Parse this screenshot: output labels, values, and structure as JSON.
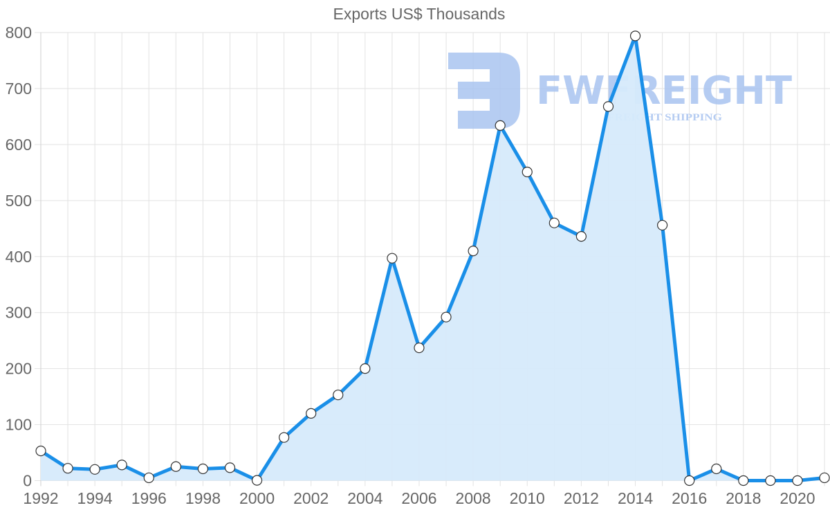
{
  "chart_data": {
    "type": "area",
    "title": "Exports US$ Thousands",
    "xlabel": "",
    "ylabel": "",
    "ylim": [
      0,
      800
    ],
    "grid": true,
    "legend": "none",
    "x": [
      1992,
      1993,
      1994,
      1995,
      1996,
      1997,
      1998,
      1999,
      2000,
      2001,
      2002,
      2003,
      2004,
      2005,
      2006,
      2007,
      2008,
      2009,
      2010,
      2011,
      2012,
      2013,
      2014,
      2015,
      2016,
      2017,
      2018,
      2019,
      2020,
      2021
    ],
    "series": [
      {
        "name": "Exports US$ Thousands",
        "values": [
          53,
          22,
          20,
          28,
          5,
          25,
          21,
          23,
          0.5,
          77,
          120,
          153,
          200,
          397,
          237,
          292,
          410,
          634,
          551,
          460,
          436,
          668,
          794,
          456,
          0,
          21,
          0,
          0,
          0,
          5
        ],
        "color": "#1a8fe8",
        "fill": "#d6eafb"
      }
    ],
    "y_ticks": [
      "0",
      "100",
      "200",
      "300",
      "400",
      "500",
      "600",
      "700",
      "800"
    ],
    "x_ticks": [
      "1992",
      "1994",
      "1996",
      "1998",
      "2000",
      "2002",
      "2004",
      "2006",
      "2008",
      "2010",
      "2012",
      "2014",
      "2016",
      "2018",
      "2020"
    ]
  },
  "watermark": {
    "brand": "FWFREIGHT",
    "tagline": "FREIGHT SHIPPING",
    "color": "#a9c4f0"
  }
}
